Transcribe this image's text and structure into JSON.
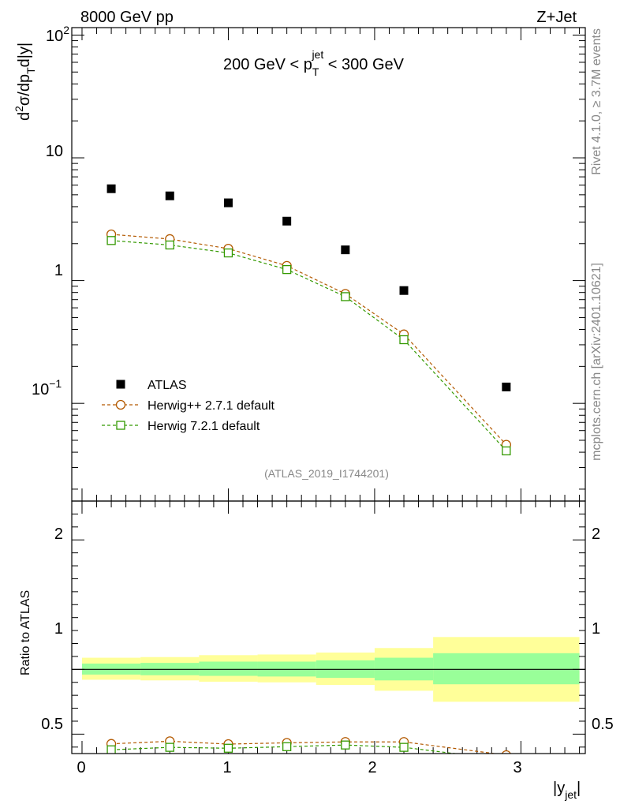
{
  "header": {
    "left": "8000 GeV pp",
    "right": "Z+Jet"
  },
  "side": {
    "rivet": "Rivet 4.1.0, ≥ 3.7M events",
    "mcplots": "mcplots.cern.ch [arXiv:2401.10621]"
  },
  "chart_data": [
    {
      "type": "scatter",
      "panel": "main",
      "title": {
        "pre": "200 GeV < p",
        "sub": "T",
        "sup": "jet",
        "post": " < 300 GeV"
      },
      "ylabel": "d²σ/dp_T d|y|",
      "yscale": "log",
      "ylim": [
        0.016,
        115
      ],
      "xlim": [
        -0.07,
        3.44
      ],
      "ytick_labels": {
        "major_10": "10",
        "major_1": "1",
        "major_100_base": "10",
        "major_100_exp": "2",
        "major_01_base": "10",
        "major_01_exp": "−1"
      },
      "analysis_label": "(ATLAS_2019_I1744201)",
      "series": [
        {
          "name": "ATLAS",
          "style": "data",
          "color": "#000000",
          "x": [
            0.2,
            0.6,
            1.0,
            1.4,
            1.8,
            2.2,
            2.9
          ],
          "values": [
            5.6,
            4.9,
            4.3,
            3.05,
            1.78,
            0.83,
            0.136
          ]
        },
        {
          "name": "Herwig++ 2.7.1 default",
          "style": "circle",
          "color": "#b35900",
          "x": [
            0.2,
            0.6,
            1.0,
            1.4,
            1.8,
            2.2,
            2.9
          ],
          "values": [
            2.38,
            2.18,
            1.82,
            1.32,
            0.78,
            0.365,
            0.046
          ]
        },
        {
          "name": "Herwig 7.2.1 default",
          "style": "square",
          "color": "#339900",
          "x": [
            0.2,
            0.6,
            1.0,
            1.4,
            1.8,
            2.2,
            2.9
          ],
          "values": [
            2.12,
            1.95,
            1.68,
            1.23,
            0.74,
            0.33,
            0.041
          ]
        }
      ]
    },
    {
      "type": "line",
      "panel": "ratio",
      "ylabel": "Ratio to ATLAS",
      "xlabel_main": "|y",
      "xlabel_sub": "jet",
      "xlabel_close": "|",
      "ylim": [
        0.35,
        2.3
      ],
      "xlim": [
        -0.07,
        3.44
      ],
      "xtick_labels": [
        "0",
        "1",
        "2",
        "3"
      ],
      "ytick_labels": [
        "0.5",
        "1",
        "2"
      ],
      "bands": {
        "edges": [
          0.0,
          0.4,
          0.8,
          1.2,
          1.6,
          2.0,
          2.4,
          3.4
        ],
        "stat_lo": [
          0.96,
          0.955,
          0.95,
          0.945,
          0.935,
          0.915,
          0.885
        ],
        "stat_hi": [
          1.045,
          1.05,
          1.06,
          1.06,
          1.07,
          1.09,
          1.125
        ],
        "tot_lo": [
          0.92,
          0.915,
          0.905,
          0.9,
          0.88,
          0.835,
          0.75
        ],
        "tot_hi": [
          1.09,
          1.095,
          1.11,
          1.115,
          1.13,
          1.165,
          1.25
        ],
        "stat_color": "#99ff99",
        "tot_color": "#ffff99"
      },
      "series": [
        {
          "name": "Herwig++ 2.7.1 default",
          "style": "circle",
          "color": "#b35900",
          "x": [
            0.2,
            0.6,
            1.0,
            1.4,
            1.8,
            2.2,
            2.9
          ],
          "values": [
            0.425,
            0.445,
            0.423,
            0.433,
            0.44,
            0.44,
            0.338
          ]
        },
        {
          "name": "Herwig 7.2.1 default",
          "style": "square",
          "color": "#339900",
          "x": [
            0.2,
            0.6,
            1.0,
            1.4,
            1.8,
            2.2,
            2.9
          ],
          "values": [
            0.379,
            0.398,
            0.391,
            0.403,
            0.416,
            0.398,
            0.301
          ]
        }
      ]
    }
  ]
}
